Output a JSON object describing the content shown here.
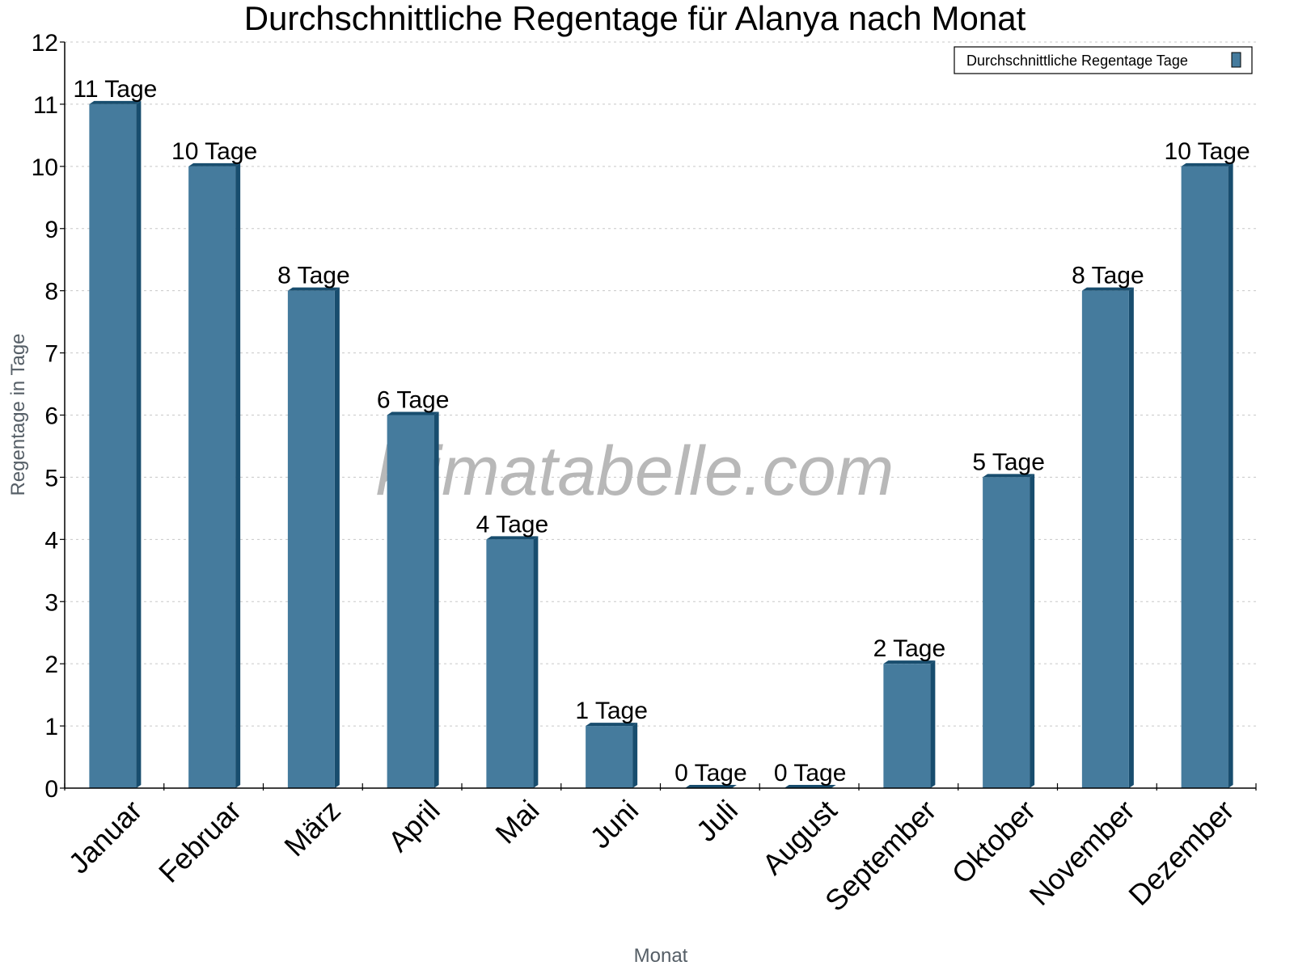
{
  "chart_data": {
    "type": "bar",
    "title": "Durchschnittliche Regentage für Alanya nach Monat",
    "xlabel": "Monat",
    "ylabel": "Regentage in Tage",
    "ylim": [
      0,
      12
    ],
    "yticks": [
      0,
      1,
      2,
      3,
      4,
      5,
      6,
      7,
      8,
      9,
      10,
      11,
      12
    ],
    "grid": true,
    "legend_position": "top-right",
    "categories": [
      "Januar",
      "Februar",
      "März",
      "April",
      "Mai",
      "Juni",
      "Juli",
      "August",
      "September",
      "Oktober",
      "November",
      "Dezember"
    ],
    "series": [
      {
        "name": "Durchschnittliche Regentage Tage",
        "values": [
          11,
          10,
          8,
          6,
          4,
          1,
          0,
          0,
          2,
          5,
          8,
          10
        ],
        "labels": [
          "11 Tage",
          "10 Tage",
          "8 Tage",
          "6 Tage",
          "4 Tage",
          "1 Tage",
          "0 Tage",
          "0 Tage",
          "2 Tage",
          "5 Tage",
          "8 Tage",
          "10 Tage"
        ],
        "color": "#457b9d",
        "side_color": "#184d6e"
      }
    ],
    "watermark": "klimatabelle.com"
  }
}
